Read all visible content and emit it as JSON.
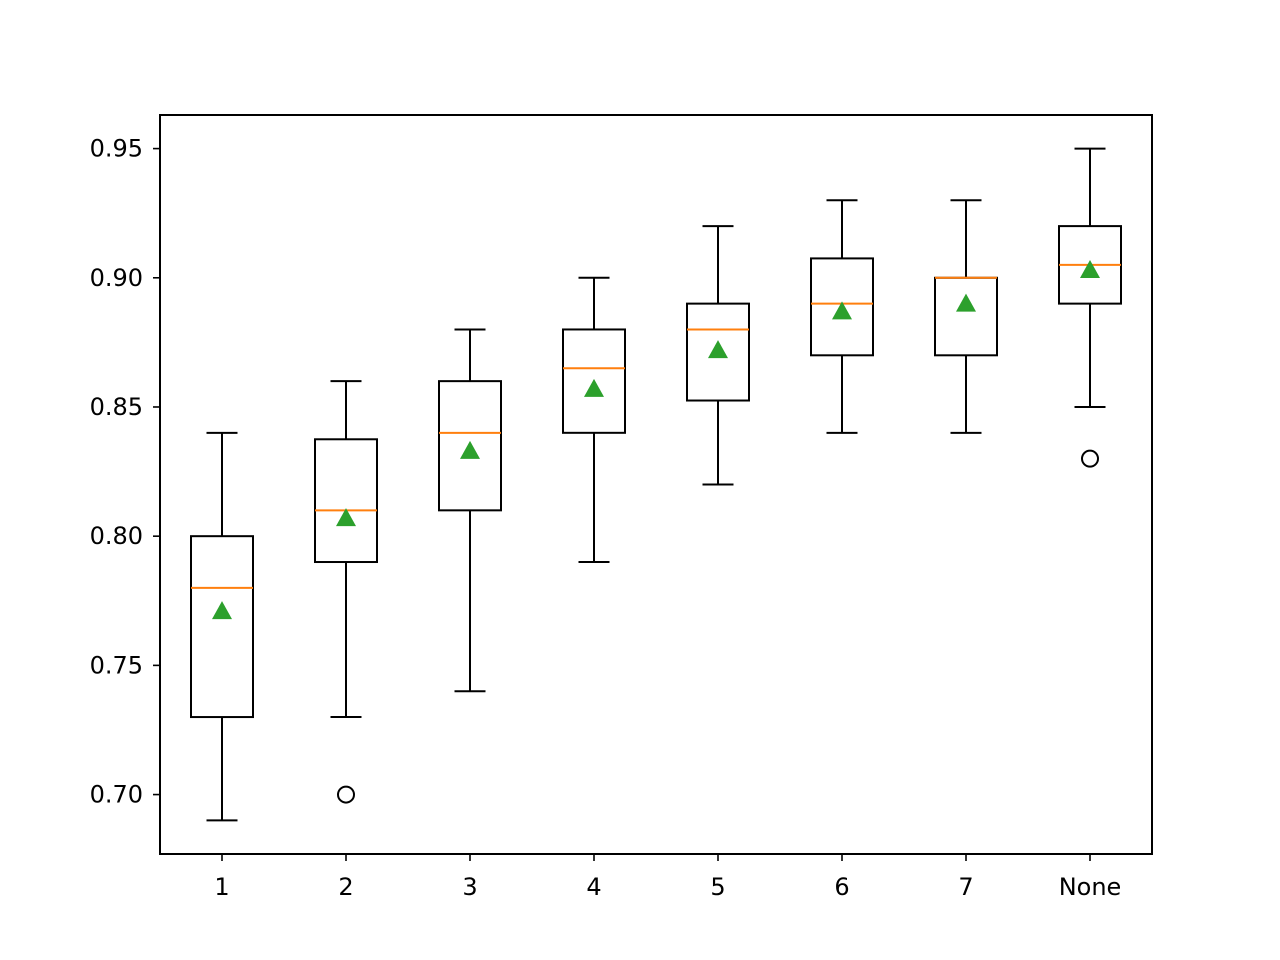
{
  "chart_data": {
    "type": "box",
    "categories": [
      "1",
      "2",
      "3",
      "4",
      "5",
      "6",
      "7",
      "None"
    ],
    "ylim": [
      0.677,
      0.963
    ],
    "yticks": [
      0.7,
      0.75,
      0.8,
      0.85,
      0.9,
      0.95
    ],
    "ytick_labels": [
      "0.70",
      "0.75",
      "0.80",
      "0.85",
      "0.90",
      "0.95"
    ],
    "grid": false,
    "boxes": [
      {
        "whisker_low": 0.69,
        "q1": 0.73,
        "median": 0.78,
        "q3": 0.8,
        "whisker_high": 0.84,
        "mean": 0.771,
        "outliers": []
      },
      {
        "whisker_low": 0.73,
        "q1": 0.79,
        "median": 0.81,
        "q3": 0.8375,
        "whisker_high": 0.86,
        "mean": 0.807,
        "outliers": [
          0.7
        ]
      },
      {
        "whisker_low": 0.74,
        "q1": 0.81,
        "median": 0.84,
        "q3": 0.86,
        "whisker_high": 0.88,
        "mean": 0.833,
        "outliers": []
      },
      {
        "whisker_low": 0.79,
        "q1": 0.84,
        "median": 0.865,
        "q3": 0.88,
        "whisker_high": 0.9,
        "mean": 0.857,
        "outliers": []
      },
      {
        "whisker_low": 0.82,
        "q1": 0.8525,
        "median": 0.88,
        "q3": 0.89,
        "whisker_high": 0.92,
        "mean": 0.872,
        "outliers": []
      },
      {
        "whisker_low": 0.84,
        "q1": 0.87,
        "median": 0.89,
        "q3": 0.9075,
        "whisker_high": 0.93,
        "mean": 0.887,
        "outliers": []
      },
      {
        "whisker_low": 0.84,
        "q1": 0.87,
        "median": 0.9,
        "q3": 0.9,
        "whisker_high": 0.93,
        "mean": 0.89,
        "outliers": []
      },
      {
        "whisker_low": 0.85,
        "q1": 0.89,
        "median": 0.905,
        "q3": 0.92,
        "whisker_high": 0.95,
        "mean": 0.903,
        "outliers": [
          0.83
        ]
      }
    ],
    "colors": {
      "box": "#000000",
      "median": "#ff7f0e",
      "mean": "#2ca02c",
      "outlier": "#000000"
    }
  }
}
